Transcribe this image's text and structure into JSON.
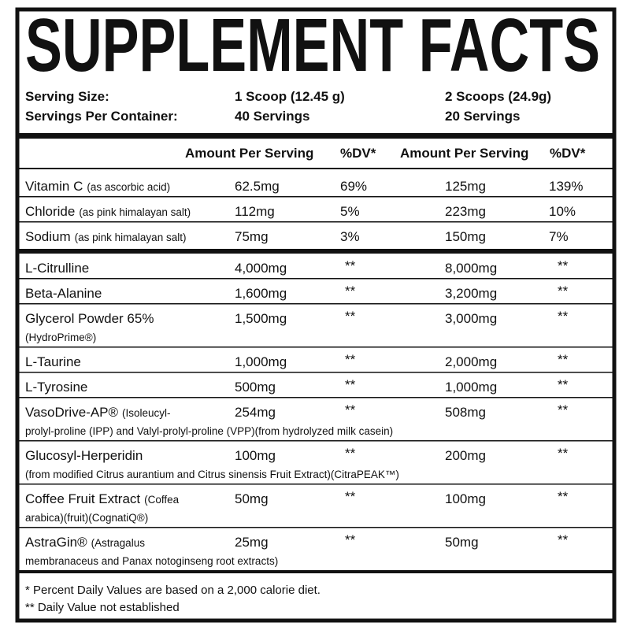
{
  "title": "SUPPLEMENT FACTS",
  "serving": [
    {
      "label": "Serving Size:",
      "col1": "1 Scoop (12.45 g)",
      "col2": "2 Scoops (24.9g)"
    },
    {
      "label": "Servings Per Container:",
      "col1": "40 Servings",
      "col2": "20 Servings"
    }
  ],
  "table": {
    "header": [
      "Amount Per Serving",
      "%DV*",
      "Amount Per Serving",
      "%DV*"
    ],
    "vitamins": [
      {
        "name": "Vitamin C",
        "note": "(as ascorbic acid)",
        "amount1": "62.5mg",
        "dv1": "69%",
        "amount2": "125mg",
        "dv2": "139%"
      },
      {
        "name": "Chloride",
        "note": "(as pink himalayan salt)",
        "amount1": "112mg",
        "dv1": "5%",
        "amount2": "223mg",
        "dv2": "10%"
      },
      {
        "name": "Sodium",
        "note": "(as pink himalayan salt)",
        "amount1": "75mg",
        "dv1": "3%",
        "amount2": "150mg",
        "dv2": "7%"
      }
    ],
    "ingredients": [
      {
        "name": "L-Citrulline",
        "amount1": "4,000mg",
        "dv1": "**",
        "amount2": "8,000mg",
        "dv2": "**"
      },
      {
        "name": "Beta-Alanine",
        "amount1": "1,600mg",
        "dv1": "**",
        "amount2": "3,200mg",
        "dv2": "**"
      },
      {
        "name": "Glycerol Powder 65%",
        "line2": "(HydroPrime®)",
        "amount1": "1,500mg",
        "dv1": "**",
        "amount2": "3,000mg",
        "dv2": "**"
      },
      {
        "name": "L-Taurine",
        "amount1": "1,000mg",
        "dv1": "**",
        "amount2": "2,000mg",
        "dv2": "**"
      },
      {
        "name": "L-Tyrosine",
        "amount1": "500mg",
        "dv1": "**",
        "amount2": "1,000mg",
        "dv2": "**"
      },
      {
        "name": "VasoDrive-AP®",
        "note": "(Isoleucyl-",
        "line2": "prolyl-proline (IPP) and Valyl-prolyl-proline (VPP)(from hydrolyzed milk casein)",
        "amount1": "254mg",
        "dv1": "**",
        "amount2": "508mg",
        "dv2": "**"
      },
      {
        "name": "Glucosyl-Herperidin",
        "line2": "(from modified Citrus aurantium and Citrus sinensis Fruit Extract)(CitraPEAK™)",
        "amount1": "100mg",
        "dv1": "**",
        "amount2": "200mg",
        "dv2": "**"
      },
      {
        "name": "Coffee Fruit Extract",
        "note": "(Coffea",
        "line2": "arabica)(fruit)(CognatiQ®)",
        "amount1": "50mg",
        "dv1": "**",
        "amount2": "100mg",
        "dv2": "**"
      },
      {
        "name": "AstraGin®",
        "note": "(Astragalus",
        "line2": "membranaceus and Panax notoginseng root extracts)",
        "amount1": "25mg",
        "dv1": "**",
        "amount2": "50mg",
        "dv2": "**"
      }
    ]
  },
  "footnotes": [
    "* Percent Daily Values are based on a 2,000 calorie diet.",
    "** Daily Value not established"
  ]
}
